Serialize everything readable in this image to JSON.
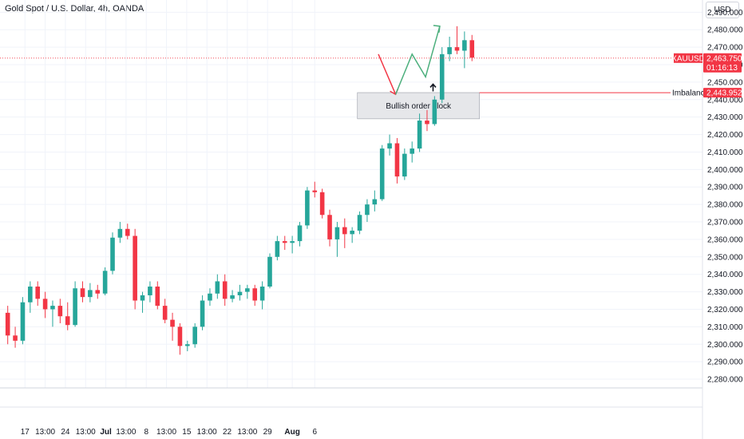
{
  "header": {
    "title": "Gold Spot / U.S. Dollar, 4h, OANDA",
    "currency_button": "USD"
  },
  "colors": {
    "up": "#26a69a",
    "down": "#f23645",
    "grid": "#f0f3fa",
    "price_line": "#f23645",
    "order_block_fill": "#e6e7ea",
    "order_block_border": "#9a9ea8",
    "arrow_red": "#f23645",
    "arrow_green": "#4caf7d"
  },
  "price_tag": {
    "symbol": "XAUUSD",
    "price": "2,463.750",
    "countdown": "01:16:13"
  },
  "imbalance_tag": {
    "label": "Imbalance",
    "price": "2,443.952"
  },
  "order_block_label": "Bullish order block",
  "chart_data": {
    "type": "candlestick",
    "title": "Gold Spot / U.S. Dollar, 4h, OANDA",
    "ylim": [
      2275,
      2497
    ],
    "y_ticks": [
      2280,
      2290,
      2300,
      2310,
      2320,
      2330,
      2340,
      2350,
      2360,
      2370,
      2380,
      2390,
      2400,
      2410,
      2420,
      2430,
      2440,
      2450,
      2460,
      2470,
      2480,
      2490
    ],
    "y_tick_labels": [
      "2,280.000",
      "2,290.000",
      "2,300.000",
      "2,310.000",
      "2,320.000",
      "2,330.000",
      "2,340.000",
      "2,350.000",
      "2,360.000",
      "2,370.000",
      "2,380.000",
      "2,390.000",
      "2,400.000",
      "2,410.000",
      "2,420.000",
      "2,430.000",
      "2,440.000",
      "2,450.000",
      "2,460.000",
      "2,470.000",
      "2,480.000",
      "2,490.000"
    ],
    "x_tick_labels": [
      "17",
      "13:00",
      "24",
      "13:00",
      "Jul",
      "13:00",
      "8",
      "13:00",
      "15",
      "13:00",
      "22",
      "13:00",
      "29",
      "Aug",
      "6"
    ],
    "x_tick_bars": [
      2.8,
      5.5,
      8.2,
      10.9,
      13.6,
      16.3,
      19.0,
      21.7,
      24.4,
      27.1,
      29.8,
      32.5,
      35.2,
      38.5,
      41.5
    ],
    "bar_count_span": [
      0,
      44.5
    ],
    "candles": [
      {
        "o": 2318,
        "h": 2322,
        "l": 2300,
        "c": 2305
      },
      {
        "o": 2305,
        "h": 2310,
        "l": 2298,
        "c": 2302
      },
      {
        "o": 2302,
        "h": 2327,
        "l": 2300,
        "c": 2324
      },
      {
        "o": 2324,
        "h": 2336,
        "l": 2318,
        "c": 2333
      },
      {
        "o": 2333,
        "h": 2336,
        "l": 2322,
        "c": 2326
      },
      {
        "o": 2326,
        "h": 2330,
        "l": 2315,
        "c": 2320
      },
      {
        "o": 2320,
        "h": 2325,
        "l": 2310,
        "c": 2322
      },
      {
        "o": 2322,
        "h": 2326,
        "l": 2312,
        "c": 2316
      },
      {
        "o": 2316,
        "h": 2324,
        "l": 2308,
        "c": 2311
      },
      {
        "o": 2311,
        "h": 2336,
        "l": 2310,
        "c": 2332
      },
      {
        "o": 2332,
        "h": 2336,
        "l": 2324,
        "c": 2327
      },
      {
        "o": 2327,
        "h": 2335,
        "l": 2324,
        "c": 2331
      },
      {
        "o": 2331,
        "h": 2334,
        "l": 2326,
        "c": 2329
      },
      {
        "o": 2329,
        "h": 2344,
        "l": 2328,
        "c": 2342
      },
      {
        "o": 2342,
        "h": 2364,
        "l": 2340,
        "c": 2361
      },
      {
        "o": 2361,
        "h": 2370,
        "l": 2358,
        "c": 2366
      },
      {
        "o": 2366,
        "h": 2369,
        "l": 2360,
        "c": 2362
      },
      {
        "o": 2362,
        "h": 2366,
        "l": 2320,
        "c": 2325
      },
      {
        "o": 2325,
        "h": 2330,
        "l": 2318,
        "c": 2328
      },
      {
        "o": 2328,
        "h": 2336,
        "l": 2324,
        "c": 2333
      },
      {
        "o": 2333,
        "h": 2336,
        "l": 2320,
        "c": 2322
      },
      {
        "o": 2322,
        "h": 2326,
        "l": 2312,
        "c": 2314
      },
      {
        "o": 2314,
        "h": 2318,
        "l": 2302,
        "c": 2310
      },
      {
        "o": 2310,
        "h": 2312,
        "l": 2294,
        "c": 2299
      },
      {
        "o": 2299,
        "h": 2302,
        "l": 2296,
        "c": 2300
      },
      {
        "o": 2300,
        "h": 2312,
        "l": 2298,
        "c": 2310
      },
      {
        "o": 2310,
        "h": 2328,
        "l": 2308,
        "c": 2325
      },
      {
        "o": 2325,
        "h": 2332,
        "l": 2322,
        "c": 2329
      },
      {
        "o": 2329,
        "h": 2340,
        "l": 2326,
        "c": 2336
      },
      {
        "o": 2336,
        "h": 2340,
        "l": 2322,
        "c": 2326
      },
      {
        "o": 2326,
        "h": 2331,
        "l": 2324,
        "c": 2328
      },
      {
        "o": 2328,
        "h": 2334,
        "l": 2325,
        "c": 2330
      },
      {
        "o": 2330,
        "h": 2334,
        "l": 2326,
        "c": 2332
      },
      {
        "o": 2332,
        "h": 2334,
        "l": 2322,
        "c": 2325
      },
      {
        "o": 2325,
        "h": 2336,
        "l": 2320,
        "c": 2333
      },
      {
        "o": 2333,
        "h": 2352,
        "l": 2332,
        "c": 2350
      },
      {
        "o": 2350,
        "h": 2362,
        "l": 2348,
        "c": 2359
      },
      {
        "o": 2359,
        "h": 2362,
        "l": 2354,
        "c": 2358
      },
      {
        "o": 2358,
        "h": 2362,
        "l": 2352,
        "c": 2359
      },
      {
        "o": 2359,
        "h": 2370,
        "l": 2356,
        "c": 2368
      },
      {
        "o": 2368,
        "h": 2390,
        "l": 2366,
        "c": 2388
      },
      {
        "o": 2388,
        "h": 2393,
        "l": 2384,
        "c": 2387
      },
      {
        "o": 2387,
        "h": 2389,
        "l": 2372,
        "c": 2374
      },
      {
        "o": 2374,
        "h": 2377,
        "l": 2356,
        "c": 2360
      },
      {
        "o": 2360,
        "h": 2370,
        "l": 2350,
        "c": 2367
      },
      {
        "o": 2367,
        "h": 2372,
        "l": 2355,
        "c": 2363
      },
      {
        "o": 2363,
        "h": 2367,
        "l": 2358,
        "c": 2365
      },
      {
        "o": 2365,
        "h": 2376,
        "l": 2363,
        "c": 2374
      },
      {
        "o": 2374,
        "h": 2383,
        "l": 2370,
        "c": 2380
      },
      {
        "o": 2380,
        "h": 2388,
        "l": 2376,
        "c": 2383
      },
      {
        "o": 2383,
        "h": 2414,
        "l": 2382,
        "c": 2412
      },
      {
        "o": 2412,
        "h": 2420,
        "l": 2408,
        "c": 2415
      },
      {
        "o": 2415,
        "h": 2418,
        "l": 2392,
        "c": 2396
      },
      {
        "o": 2396,
        "h": 2412,
        "l": 2394,
        "c": 2409
      },
      {
        "o": 2409,
        "h": 2416,
        "l": 2404,
        "c": 2412
      },
      {
        "o": 2412,
        "h": 2432,
        "l": 2410,
        "c": 2428
      },
      {
        "o": 2428,
        "h": 2434,
        "l": 2422,
        "c": 2426
      },
      {
        "o": 2426,
        "h": 2442,
        "l": 2425,
        "c": 2440
      },
      {
        "o": 2440,
        "h": 2470,
        "l": 2438,
        "c": 2466
      },
      {
        "o": 2466,
        "h": 2476,
        "l": 2462,
        "c": 2470
      },
      {
        "o": 2470,
        "h": 2482,
        "l": 2466,
        "c": 2468
      },
      {
        "o": 2468,
        "h": 2479,
        "l": 2458,
        "c": 2474
      },
      {
        "o": 2474,
        "h": 2477,
        "l": 2462,
        "c": 2464
      }
    ],
    "last_price": 2463.75,
    "imbalance_price": 2443.952,
    "order_block": {
      "top": 2444,
      "bottom": 2429,
      "x_start": 47.2,
      "x_end": 63.5
    },
    "projection_red": [
      [
        50.0,
        2466
      ],
      [
        52.3,
        2443
      ]
    ],
    "projection_green": [
      [
        52.3,
        2443
      ],
      [
        54.5,
        2466
      ],
      [
        56.3,
        2453
      ],
      [
        58.2,
        2482
      ]
    ],
    "up_arrow": [
      57.3,
      2447
    ]
  }
}
